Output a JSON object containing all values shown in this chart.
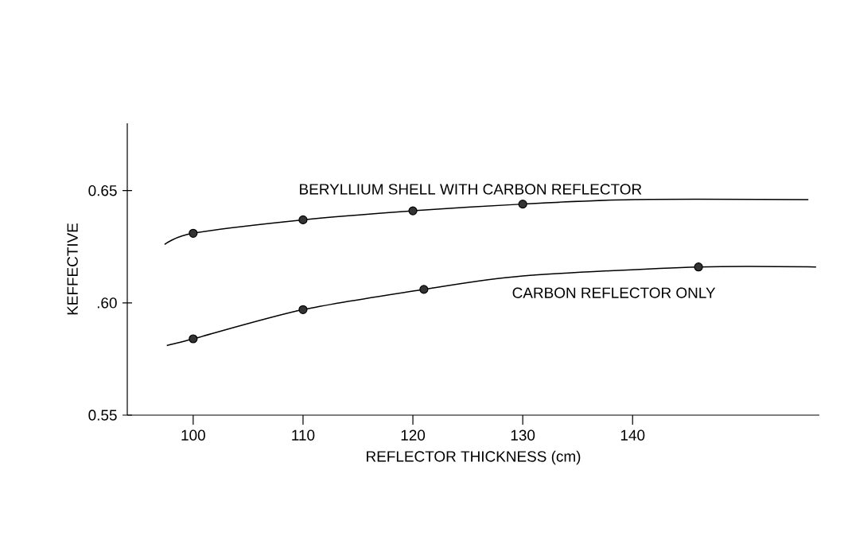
{
  "chart_data": {
    "type": "line",
    "xlabel": "REFLECTOR THICKNESS (cm)",
    "ylabel": "KEFFECTIVE",
    "xlim": [
      94,
      157
    ],
    "ylim": [
      0.55,
      0.68
    ],
    "xticks": [
      100,
      110,
      120,
      130,
      140
    ],
    "yticks": [
      {
        "value": 0.55,
        "label": "0.55"
      },
      {
        "value": 0.6,
        "label": ".60"
      },
      {
        "value": 0.65,
        "label": "0.65"
      }
    ],
    "grid": false,
    "legend": false,
    "series": [
      {
        "name": "BERYLLIUM SHELL WITH CARBON REFLECTOR",
        "marker": "none",
        "color": "#000000",
        "x": [
          97.4,
          100,
          110,
          120,
          130,
          140,
          156
        ],
        "values": [
          0.626,
          0.631,
          0.637,
          0.641,
          0.644,
          0.646,
          0.646
        ]
      },
      {
        "name": "CARBON REFLECTOR ONLY",
        "marker": "none",
        "color": "#000000",
        "x": [
          97.6,
          100,
          110,
          121,
          130,
          146,
          156.7
        ],
        "values": [
          0.581,
          0.584,
          0.597,
          0.606,
          0.612,
          0.616,
          0.616
        ]
      },
      {
        "type": "scatter",
        "marker": "circle",
        "color": "#000000",
        "x": [
          100,
          110,
          120,
          130
        ],
        "values": [
          0.631,
          0.637,
          0.641,
          0.644
        ]
      },
      {
        "type": "scatter",
        "marker": "circle",
        "color": "#000000",
        "x": [
          100,
          110,
          121,
          146
        ],
        "values": [
          0.584,
          0.597,
          0.606,
          0.616
        ]
      }
    ]
  }
}
